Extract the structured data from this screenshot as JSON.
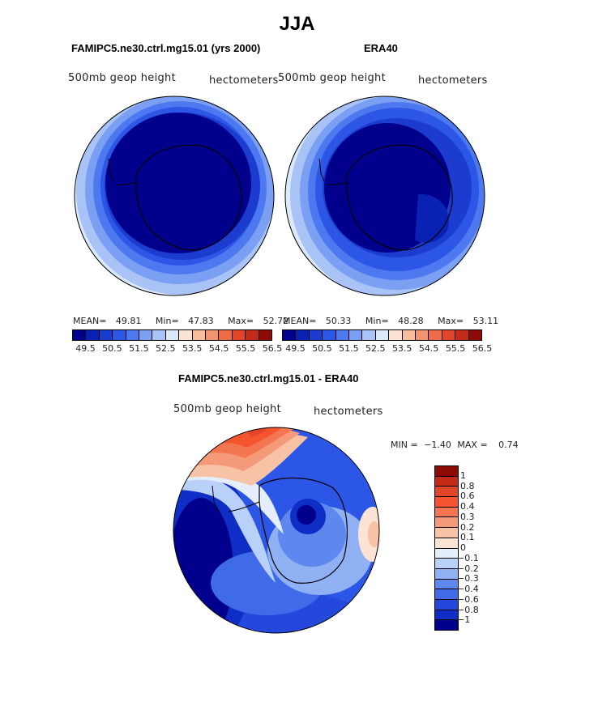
{
  "title": "JJA",
  "panels": [
    {
      "case_title": "FAMIPC5.ne30.ctrl.mg15.01 (yrs 2000)",
      "var_label": "500mb geop height",
      "units": "hectometers",
      "mean_label": "MEAN=",
      "mean": "49.81",
      "min_label": "Min=",
      "min": "47.83",
      "max_label": "Max=",
      "max": "52.72"
    },
    {
      "case_title": "ERA40",
      "var_label": "500mb geop height",
      "units": "hectometers",
      "mean_label": "MEAN=",
      "mean": "50.33",
      "min_label": "Min=",
      "min": "48.28",
      "max_label": "Max=",
      "max": "53.11"
    }
  ],
  "abs_colorbar": {
    "colors": [
      "#00008c",
      "#0a22b4",
      "#1c3ccf",
      "#2c56e6",
      "#4d79f0",
      "#7a9ff3",
      "#a9c3f6",
      "#dce9fb",
      "#fde3d4",
      "#f8bd9c",
      "#f39470",
      "#ee6a48",
      "#e2452a",
      "#c42a18",
      "#8e0a05"
    ],
    "ticks": [
      "49.5",
      "50.5",
      "51.5",
      "52.5",
      "53.5",
      "54.5",
      "55.5",
      "56.5"
    ]
  },
  "diff": {
    "title": "FAMIPC5.ne30.ctrl.mg15.01 - ERA40",
    "var_label": "500mb geop height",
    "units": "hectometers",
    "min_label": "MIN =",
    "min": "−1.40",
    "max_label": "MAX =",
    "max": "0.74"
  },
  "diff_colorbar": {
    "colors": [
      "#8e0a05",
      "#c42a18",
      "#e2452a",
      "#f4552e",
      "#f47650",
      "#f59a78",
      "#f8c2a6",
      "#fde3d4",
      "#e4eefc",
      "#b9d0f8",
      "#90b0f4",
      "#5f88ee",
      "#3f6be8",
      "#2548dc",
      "#0e2ec6",
      "#00008c"
    ],
    "ticks": [
      "1",
      "0.8",
      "0.6",
      "0.4",
      "0.3",
      "0.2",
      "0.1",
      "0",
      "−0.1",
      "−0.2",
      "−0.3",
      "−0.4",
      "−0.6",
      "−0.8",
      "−1"
    ]
  }
}
